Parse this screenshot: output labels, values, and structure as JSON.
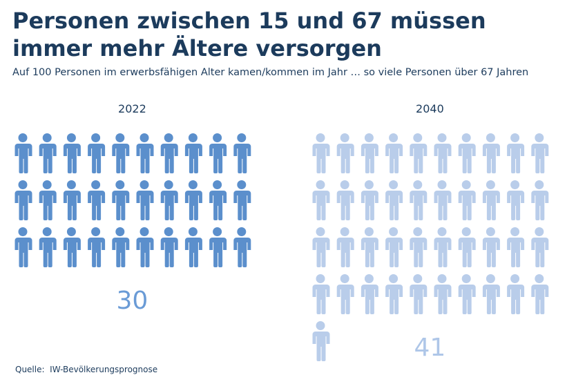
{
  "chart_data": {
    "type": "pictogram",
    "title": "Personen zwischen 15 und 67 müssen immer mehr Ältere versorgen",
    "subtitle": "Auf 100 Personen im erwerbsfähigen Alter kamen/kommen im Jahr … so viele Personen über 67 Jahren",
    "categories": [
      "2022",
      "2040"
    ],
    "values": [
      30,
      41
    ],
    "colors": [
      "#5b8fcc",
      "#b9cdea"
    ],
    "source": "Quelle:  IW-Bevölkerungsprognose"
  }
}
